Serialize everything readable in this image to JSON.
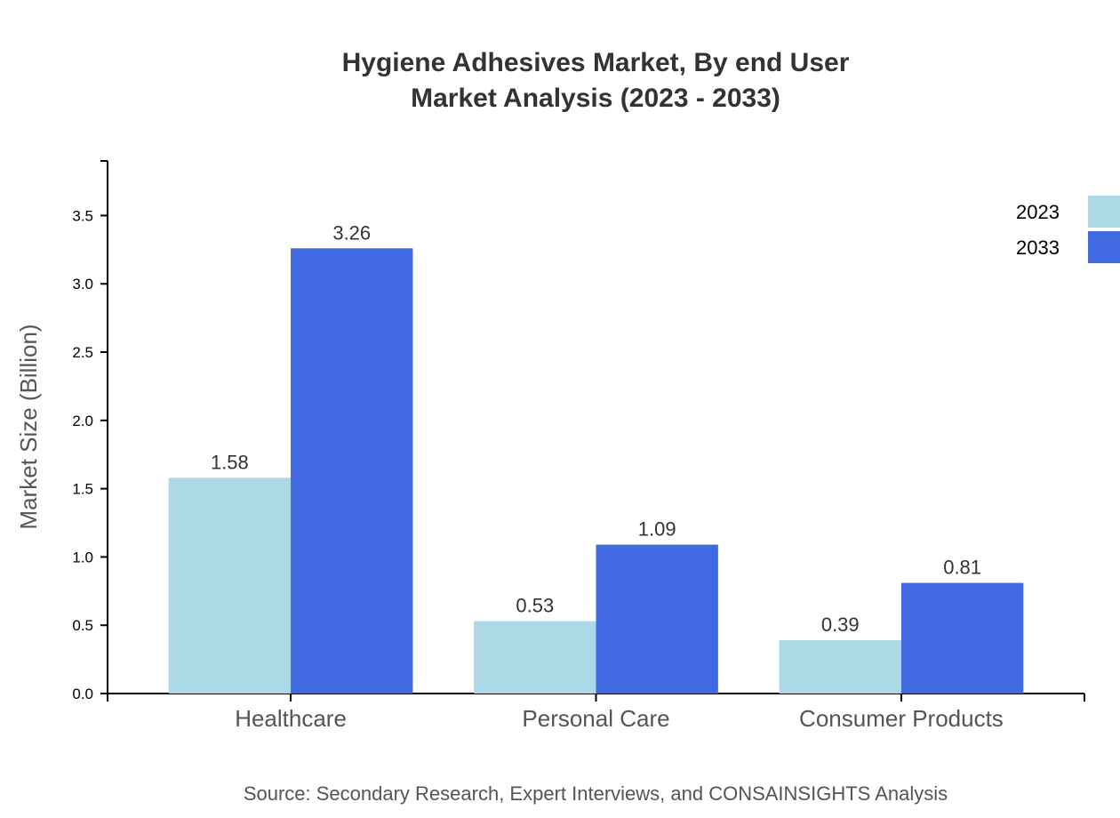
{
  "chart_data": {
    "type": "bar",
    "title": [
      "Hygiene Adhesives Market, By end User",
      "Market Analysis (2023 - 2033)"
    ],
    "ylabel": "Market Size (Billion)",
    "xlabel": "",
    "categories": [
      "Healthcare",
      "Personal Care",
      "Consumer Products"
    ],
    "series": [
      {
        "name": "2023",
        "values": [
          1.58,
          0.53,
          0.39
        ],
        "color": "#ADD8E6"
      },
      {
        "name": "2033",
        "values": [
          3.26,
          1.09,
          0.81
        ],
        "color": "#4169E1"
      }
    ],
    "ylim": [
      0,
      3.9
    ],
    "yticks": [
      0.0,
      0.5,
      1.0,
      1.5,
      2.0,
      2.5,
      3.0,
      3.5
    ],
    "grid": false,
    "legend_position": "top-right",
    "source": "Source: Secondary Research, Expert Interviews, and CONSAINSIGHTS Analysis"
  }
}
